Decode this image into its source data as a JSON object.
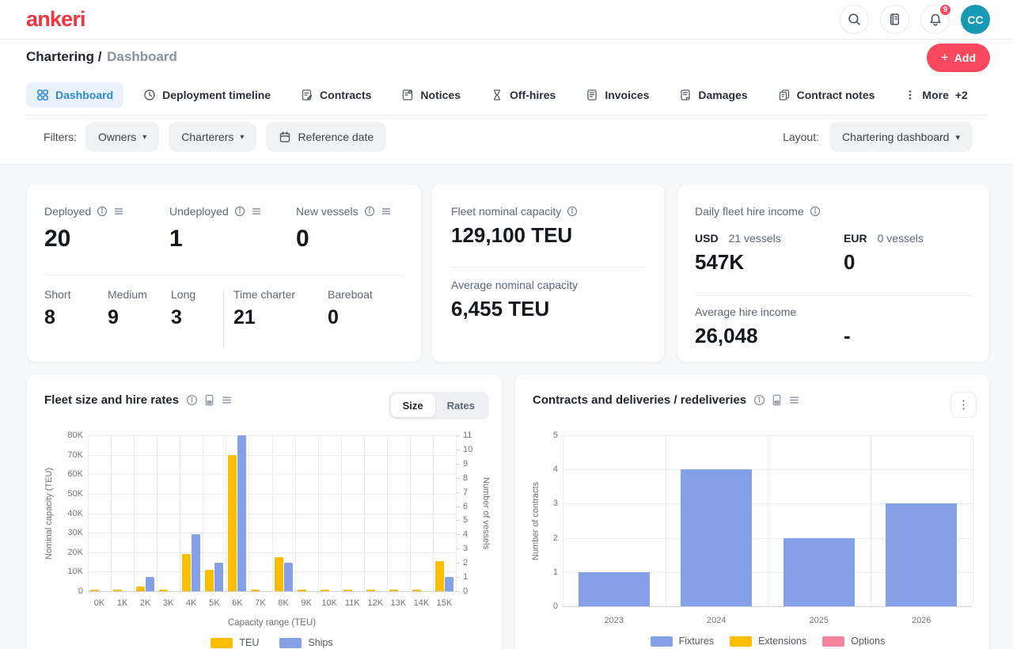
{
  "brand": {
    "logo": "ankeri"
  },
  "topbar": {
    "notification_count": "9",
    "avatar_initials": "CC"
  },
  "breadcrumb": {
    "section": "Chartering",
    "separator": " / ",
    "page": "Dashboard"
  },
  "add_button": {
    "label": "Add"
  },
  "icons": {
    "plus": "+",
    "caret_down": "▾",
    "kebab": "⋮"
  },
  "tabs": [
    {
      "label": "Dashboard",
      "active": true
    },
    {
      "label": "Deployment timeline",
      "active": false
    },
    {
      "label": "Contracts",
      "active": false
    },
    {
      "label": "Notices",
      "active": false
    },
    {
      "label": "Off-hires",
      "active": false
    },
    {
      "label": "Invoices",
      "active": false
    },
    {
      "label": "Damages",
      "active": false
    },
    {
      "label": "Contract notes",
      "active": false
    }
  ],
  "more_tab": {
    "label": "More",
    "badge": "+2"
  },
  "filters": {
    "label": "Filters:",
    "owners": "Owners",
    "charterers": "Charterers",
    "reference_date": "Reference date"
  },
  "layout_picker": {
    "label": "Layout:",
    "value": "Chartering dashboard"
  },
  "cards": {
    "deployment": {
      "stats": [
        {
          "label": "Deployed",
          "value": "20"
        },
        {
          "label": "Undeployed",
          "value": "1"
        },
        {
          "label": "New vessels",
          "value": "0"
        }
      ],
      "durations": [
        {
          "label": "Short",
          "value": "8"
        },
        {
          "label": "Medium",
          "value": "9"
        },
        {
          "label": "Long",
          "value": "3"
        }
      ],
      "charter_types": [
        {
          "label": "Time charter",
          "value": "21"
        },
        {
          "label": "Bareboat",
          "value": "0"
        }
      ]
    },
    "capacity": {
      "title": "Fleet nominal capacity",
      "value": "129,100 TEU",
      "avg_label": "Average nominal capacity",
      "avg_value": "6,455 TEU"
    },
    "hire_income": {
      "title": "Daily fleet hire income",
      "usd_label": "USD",
      "usd_vessels": "21 vessels",
      "usd_value": "547K",
      "eur_label": "EUR",
      "eur_vessels": "0 vessels",
      "eur_value": "0",
      "avg_label": "Average hire income",
      "avg_usd": "26,048",
      "avg_eur": "-"
    }
  },
  "charts": {
    "fleet": {
      "title": "Fleet size and hire rates",
      "toggle_size": "Size",
      "toggle_rates": "Rates"
    },
    "contracts": {
      "title": "Contracts and deliveries / redeliveries"
    }
  },
  "colors": {
    "brand_red": "#f5333f",
    "accent_red": "#f8485e",
    "tab_blue": "#2b8ad6",
    "avatar_teal": "#189ab5",
    "bar_yellow": "#fbbc04",
    "bar_blue": "#84a1e8",
    "bar_pink": "#f4839b"
  },
  "chart_data": [
    {
      "type": "bar",
      "title": "Fleet size and hire rates",
      "categories": [
        "0K",
        "1K",
        "2K",
        "3K",
        "4K",
        "5K",
        "6K",
        "7K",
        "8K",
        "9K",
        "10K",
        "11K",
        "12K",
        "13K",
        "14K",
        "15K"
      ],
      "series": [
        {
          "name": "TEU",
          "axis": "left",
          "color": "#fbbc04",
          "values": [
            0,
            0,
            2500,
            0,
            19000,
            11000,
            70000,
            0,
            17500,
            0,
            0,
            0,
            0,
            0,
            0,
            15300
          ]
        },
        {
          "name": "Ships",
          "axis": "right",
          "color": "#84a1e8",
          "values": [
            0,
            0,
            1,
            0,
            4,
            2,
            11,
            0,
            2,
            0,
            0,
            0,
            0,
            0,
            0,
            1
          ]
        }
      ],
      "xlabel": "Capacity range (TEU)",
      "ylabel_left": "Nominal capacity (TEU)",
      "ylabel_right": "Number of vessels",
      "ylim_left": [
        0,
        80000
      ],
      "yticks_left": [
        "0",
        "10K",
        "20K",
        "30K",
        "40K",
        "50K",
        "60K",
        "70K",
        "80K"
      ],
      "ylim_right": [
        0,
        11
      ],
      "yticks_right": [
        "0",
        "1",
        "2",
        "3",
        "4",
        "5",
        "6",
        "7",
        "8",
        "9",
        "10",
        "11"
      ],
      "grid": true,
      "legend_position": "bottom",
      "legend": [
        "TEU",
        "Ships"
      ]
    },
    {
      "type": "bar",
      "title": "Contracts and deliveries / redeliveries",
      "categories": [
        "2023",
        "2024",
        "2025",
        "2026"
      ],
      "series": [
        {
          "name": "Fixtures",
          "color": "#84a1e8",
          "values": [
            1,
            4,
            2,
            3
          ]
        },
        {
          "name": "Extensions",
          "color": "#fbbc04",
          "values": [
            0,
            0,
            0,
            0
          ]
        },
        {
          "name": "Options",
          "color": "#f4839b",
          "values": [
            0,
            0,
            0,
            0
          ]
        }
      ],
      "xlabel": "",
      "ylabel": "Number of contracts",
      "ylim": [
        0,
        5
      ],
      "yticks": [
        "0",
        "1",
        "2",
        "3",
        "4",
        "5"
      ],
      "grid": true,
      "legend_position": "bottom",
      "legend": [
        "Fixtures",
        "Extensions",
        "Options"
      ]
    }
  ]
}
